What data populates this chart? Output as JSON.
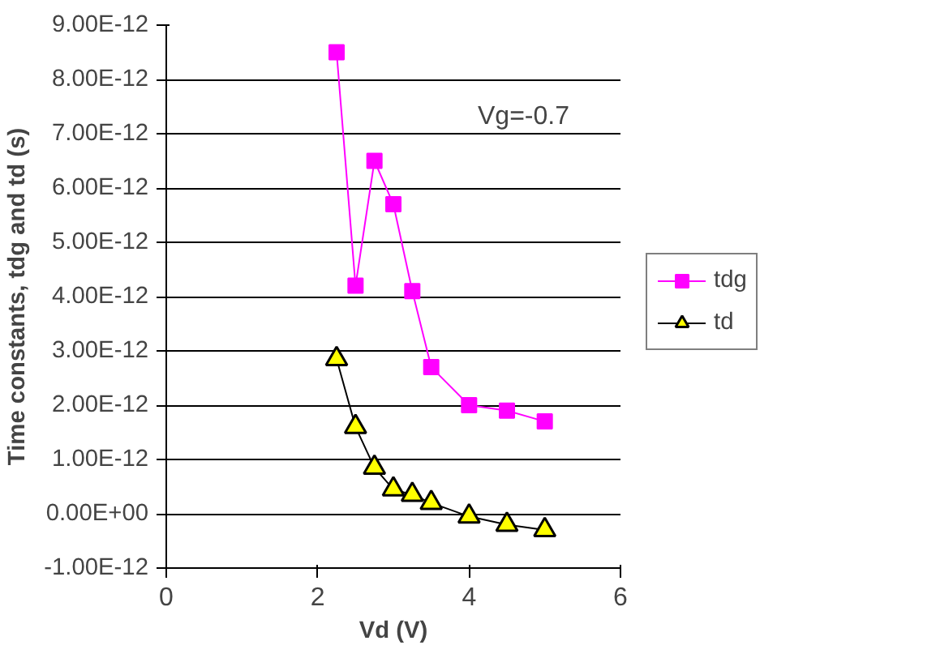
{
  "chart_data": {
    "type": "line",
    "xlabel": "Vd (V)",
    "ylabel": "Time constants, tdg and td (s)",
    "x": [
      2.25,
      2.5,
      2.75,
      3.0,
      3.25,
      3.5,
      4.0,
      4.5,
      5.0
    ],
    "series": [
      {
        "name": "tdg",
        "color": "#ff00ff",
        "marker": "square",
        "values": [
          8.5e-12,
          4.2e-12,
          6.5e-12,
          5.7e-12,
          4.1e-12,
          2.7e-12,
          2e-12,
          1.9e-12,
          1.7e-12
        ]
      },
      {
        "name": "td",
        "color": "#000000",
        "marker": "triangle",
        "colors": [
          "#ffff00",
          "#ffff00",
          "#ffff00",
          "#ffff00",
          "#ffff00",
          "#ffff00",
          "#ffff00",
          "#ffff00",
          "#ffff00"
        ],
        "values": [
          2.85e-12,
          1.6e-12,
          8.5e-13,
          4.5e-13,
          3.5e-13,
          2e-13,
          -5e-14,
          -2e-13,
          -3e-13
        ]
      }
    ],
    "xlim": [
      0,
      6
    ],
    "xticks": [
      0,
      2,
      4,
      6
    ],
    "ylim": [
      -1e-12,
      9e-12
    ],
    "yticks": [
      {
        "value": -1e-12,
        "label": "-1.00E-12"
      },
      {
        "value": 0,
        "label": "0.00E+00"
      },
      {
        "value": 1e-12,
        "label": "1.00E-12"
      },
      {
        "value": 2e-12,
        "label": "2.00E-12"
      },
      {
        "value": 3e-12,
        "label": "3.00E-12"
      },
      {
        "value": 4e-12,
        "label": "4.00E-12"
      },
      {
        "value": 5e-12,
        "label": "5.00E-12"
      },
      {
        "value": 6e-12,
        "label": "6.00E-12"
      },
      {
        "value": 7e-12,
        "label": "7.00E-12"
      },
      {
        "value": 8e-12,
        "label": "8.00E-12"
      },
      {
        "value": 9e-12,
        "label": "9.00E-12"
      }
    ],
    "grid": "y",
    "legend": "right",
    "line_style": "solid",
    "annotations": [
      "Vg=-0.7"
    ]
  }
}
